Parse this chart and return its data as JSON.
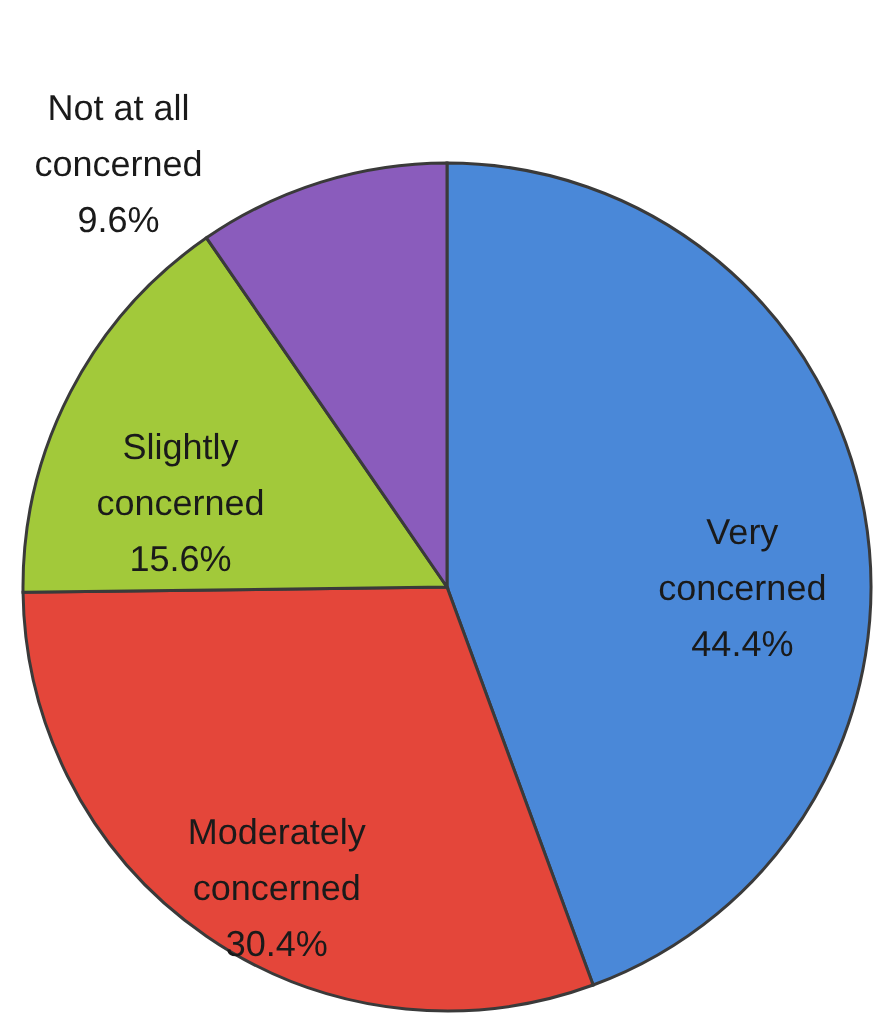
{
  "chart_data": {
    "type": "pie",
    "categories": [
      "Very concerned",
      "Moderately concerned",
      "Slightly concerned",
      "Not at all concerned"
    ],
    "values": [
      44.4,
      30.4,
      15.6,
      9.6
    ],
    "value_labels": [
      "44.4%",
      "30.4%",
      "15.6%",
      "9.6%"
    ],
    "colors": [
      "#4a88d8",
      "#e4463a",
      "#a2c93a",
      "#8a5cbc"
    ]
  }
}
